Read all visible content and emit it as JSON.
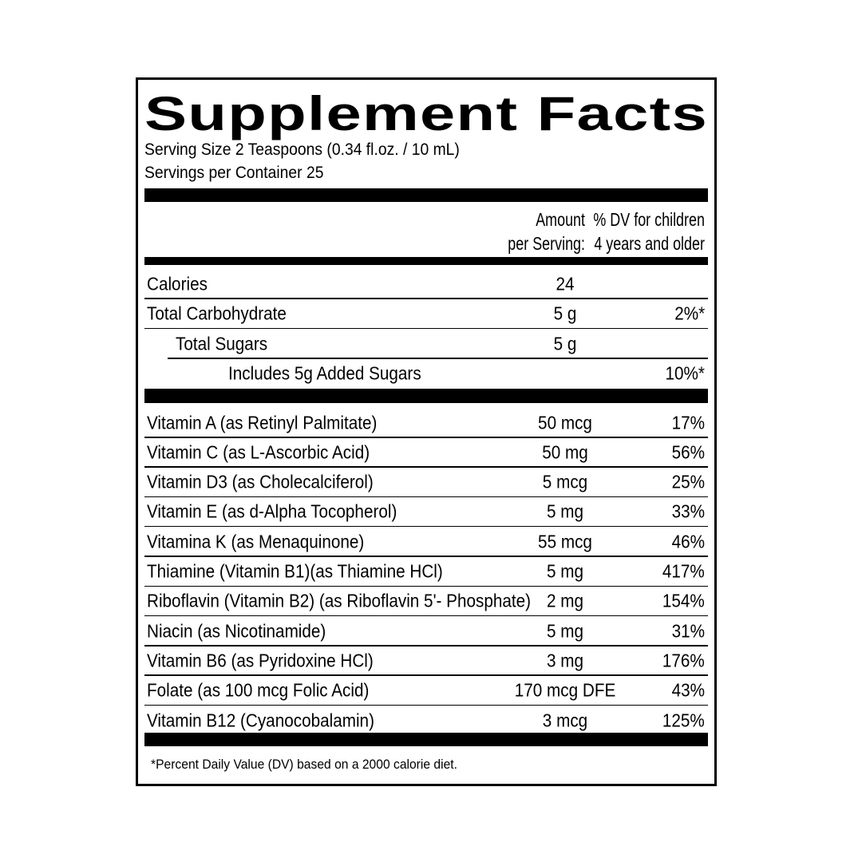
{
  "title": "Supplement Facts",
  "serving_size": "Serving Size 2 Teaspoons (0.34 fl.oz. / 10 mL)",
  "servings_per_container": "Servings per Container 25",
  "header": {
    "amount_line1": "Amount",
    "amount_line2": "per Serving:",
    "dv_line1": "% DV for children",
    "dv_line2": "4 years and older"
  },
  "macros": [
    {
      "name": "Calories",
      "amount": "24",
      "dv": ""
    },
    {
      "name": "Total Carbohydrate",
      "amount": "5 g",
      "dv": "2%*"
    },
    {
      "name": "Total Sugars",
      "amount": "5 g",
      "dv": ""
    },
    {
      "name": "Includes 5g Added Sugars",
      "amount": "",
      "dv": "10%*"
    }
  ],
  "vitamins": [
    {
      "name": "Vitamin A (as Retinyl Palmitate)",
      "amount": "50 mcg",
      "dv": "17%"
    },
    {
      "name": "Vitamin C (as L-Ascorbic Acid)",
      "amount": "50 mg",
      "dv": "56%"
    },
    {
      "name": "Vitamin D3 (as Cholecalciferol)",
      "amount": "5 mcg",
      "dv": "25%"
    },
    {
      "name": "Vitamin E (as d-Alpha Tocopherol)",
      "amount": "5 mg",
      "dv": "33%"
    },
    {
      "name": "Vitamina K (as Menaquinone)",
      "amount": "55 mcg",
      "dv": "46%"
    },
    {
      "name": "Thiamine (Vitamin B1)(as Thiamine HCl)",
      "amount": "5 mg",
      "dv": "417%"
    },
    {
      "name": "Riboflavin (Vitamin B2) (as Riboflavin 5'- Phosphate)",
      "amount": "2 mg",
      "dv": "154%"
    },
    {
      "name": "Niacin (as Nicotinamide)",
      "amount": "5 mg",
      "dv": "31%"
    },
    {
      "name": "Vitamin B6 (as Pyridoxine HCl)",
      "amount": "3 mg",
      "dv": "176%"
    },
    {
      "name": "Folate (as 100 mcg Folic Acid)",
      "amount": "170 mcg DFE",
      "dv": "43%"
    },
    {
      "name": "Vitamin B12 (Cyanocobalamin)",
      "amount": "3 mcg",
      "dv": "125%"
    }
  ],
  "footnote": "*Percent Daily Value (DV) based on a 2000 calorie diet."
}
